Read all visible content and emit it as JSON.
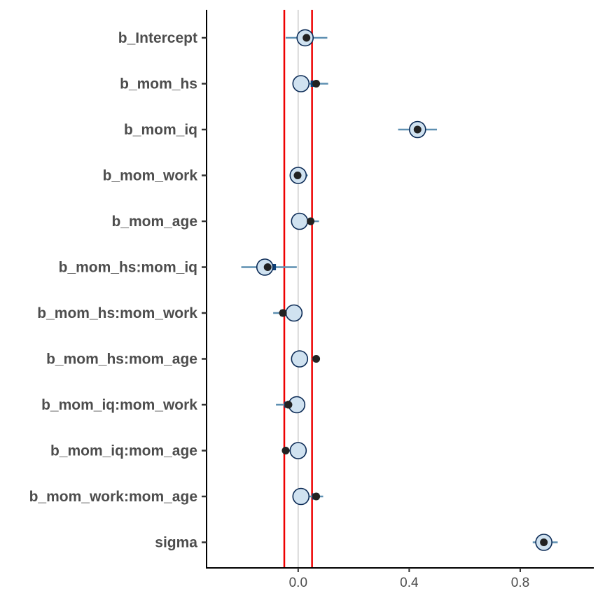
{
  "chart_data": {
    "type": "interval",
    "parameters": [
      {
        "name": "b_Intercept",
        "point": 0.03,
        "lower": -0.045,
        "upper": 0.105,
        "inner_lower": 0.01,
        "inner_upper": 0.05,
        "reference": 0.025
      },
      {
        "name": "b_mom_hs",
        "point": 0.065,
        "lower": 0.04,
        "upper": 0.108,
        "inner_lower": 0.045,
        "inner_upper": 0.07,
        "reference": 0.01
      },
      {
        "name": "b_mom_iq",
        "point": 0.43,
        "lower": 0.36,
        "upper": 0.5,
        "inner_lower": 0.405,
        "inner_upper": 0.455,
        "reference": 0.43
      },
      {
        "name": "b_mom_work",
        "point": -0.002,
        "lower": -0.015,
        "upper": 0.035,
        "inner_lower": -0.008,
        "inner_upper": 0.01,
        "reference": 0.0
      },
      {
        "name": "b_mom_age",
        "point": 0.045,
        "lower": 0.03,
        "upper": 0.075,
        "inner_lower": 0.038,
        "inner_upper": 0.055,
        "reference": 0.005
      },
      {
        "name": "b_mom_hs:mom_iq",
        "point": -0.11,
        "lower": -0.205,
        "upper": -0.005,
        "inner_lower": -0.14,
        "inner_upper": -0.08,
        "reference": -0.12
      },
      {
        "name": "b_mom_hs:mom_work",
        "point": -0.055,
        "lower": -0.09,
        "upper": -0.035,
        "inner_lower": -0.065,
        "inner_upper": -0.045,
        "reference": -0.015
      },
      {
        "name": "b_mom_hs:mom_age",
        "point": 0.065,
        "lower": 0.05,
        "upper": 0.07,
        "inner_lower": 0.055,
        "inner_upper": 0.068,
        "reference": 0.005
      },
      {
        "name": "b_mom_iq:mom_work",
        "point": -0.035,
        "lower": -0.08,
        "upper": -0.025,
        "inner_lower": -0.05,
        "inner_upper": -0.03,
        "reference": -0.005
      },
      {
        "name": "b_mom_iq:mom_age",
        "point": -0.045,
        "lower": -0.055,
        "upper": -0.03,
        "inner_lower": -0.05,
        "inner_upper": -0.038,
        "reference": 0.0
      },
      {
        "name": "b_mom_work:mom_age",
        "point": 0.065,
        "lower": 0.035,
        "upper": 0.09,
        "inner_lower": 0.05,
        "inner_upper": 0.075,
        "reference": 0.01
      },
      {
        "name": "sigma",
        "point": 0.885,
        "lower": 0.845,
        "upper": 0.935,
        "inner_lower": 0.87,
        "inner_upper": 0.9,
        "reference": 0.885
      }
    ],
    "x_ticks": [
      0.0,
      0.4,
      0.8
    ],
    "x_tick_labels": [
      "0.0",
      "0.4",
      "0.8"
    ],
    "xlim": [
      -0.33,
      1.065
    ],
    "vlines": {
      "zero": {
        "value": 0.0,
        "color": "#d9d9d9"
      },
      "bounds": [
        {
          "value": -0.05,
          "color": "#ee0000"
        },
        {
          "value": 0.05,
          "color": "#ee0000"
        }
      ]
    },
    "colors": {
      "interval_line": "#5d8fb1",
      "inner_interval": "#0b3f78",
      "reference_fill": "#d0e2f0",
      "reference_stroke": "#0b2a55",
      "point": "#222222",
      "axis": "#000000",
      "label": "#4d4d4d"
    },
    "xlabel": "",
    "ylabel": "",
    "title": "",
    "grid": false
  }
}
